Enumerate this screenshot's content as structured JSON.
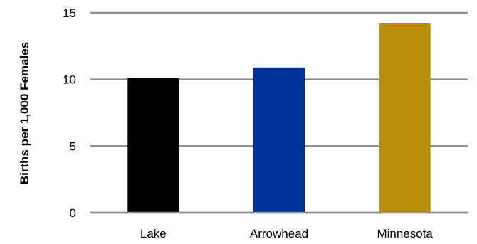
{
  "chart_data": {
    "type": "bar",
    "categories": [
      "Lake",
      "Arrowhead",
      "Minnesota"
    ],
    "values": [
      10.1,
      10.9,
      14.2
    ],
    "colors": [
      "#000000",
      "#003399",
      "#B8900A"
    ],
    "title": "",
    "xlabel": "",
    "ylabel": "Births per 1,000 Females",
    "ylim": [
      0,
      15
    ],
    "yticks": [
      0,
      5,
      10,
      15
    ],
    "ytick_labels": [
      "0",
      "5",
      "10",
      "15"
    ],
    "grid": true
  }
}
